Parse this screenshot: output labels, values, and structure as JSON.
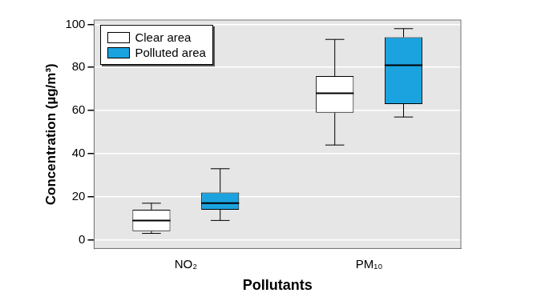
{
  "chart_data": {
    "type": "boxplot",
    "x_label": "Pollutants",
    "y_label": "Concentration (µg/m³)",
    "categories": [
      "NO₂",
      "PM₁₀"
    ],
    "series": [
      {
        "name": "Clear area",
        "color": "#ffffff",
        "values": [
          {
            "min": 3,
            "q1": 4,
            "median": 9,
            "q3": 14,
            "max": 17
          },
          {
            "min": 44,
            "q1": 59,
            "median": 68,
            "q3": 76,
            "max": 93
          }
        ]
      },
      {
        "name": "Polluted area",
        "color": "#1ba3e0",
        "values": [
          {
            "min": 9,
            "q1": 14,
            "median": 17,
            "q3": 22,
            "max": 33
          },
          {
            "min": 57,
            "q1": 63,
            "median": 81,
            "q3": 94,
            "max": 98
          }
        ]
      }
    ],
    "ylim": [
      -4,
      102
    ],
    "yticks": [
      0,
      20,
      40,
      60,
      80,
      100
    ],
    "grid": true,
    "legend": "upper left"
  }
}
